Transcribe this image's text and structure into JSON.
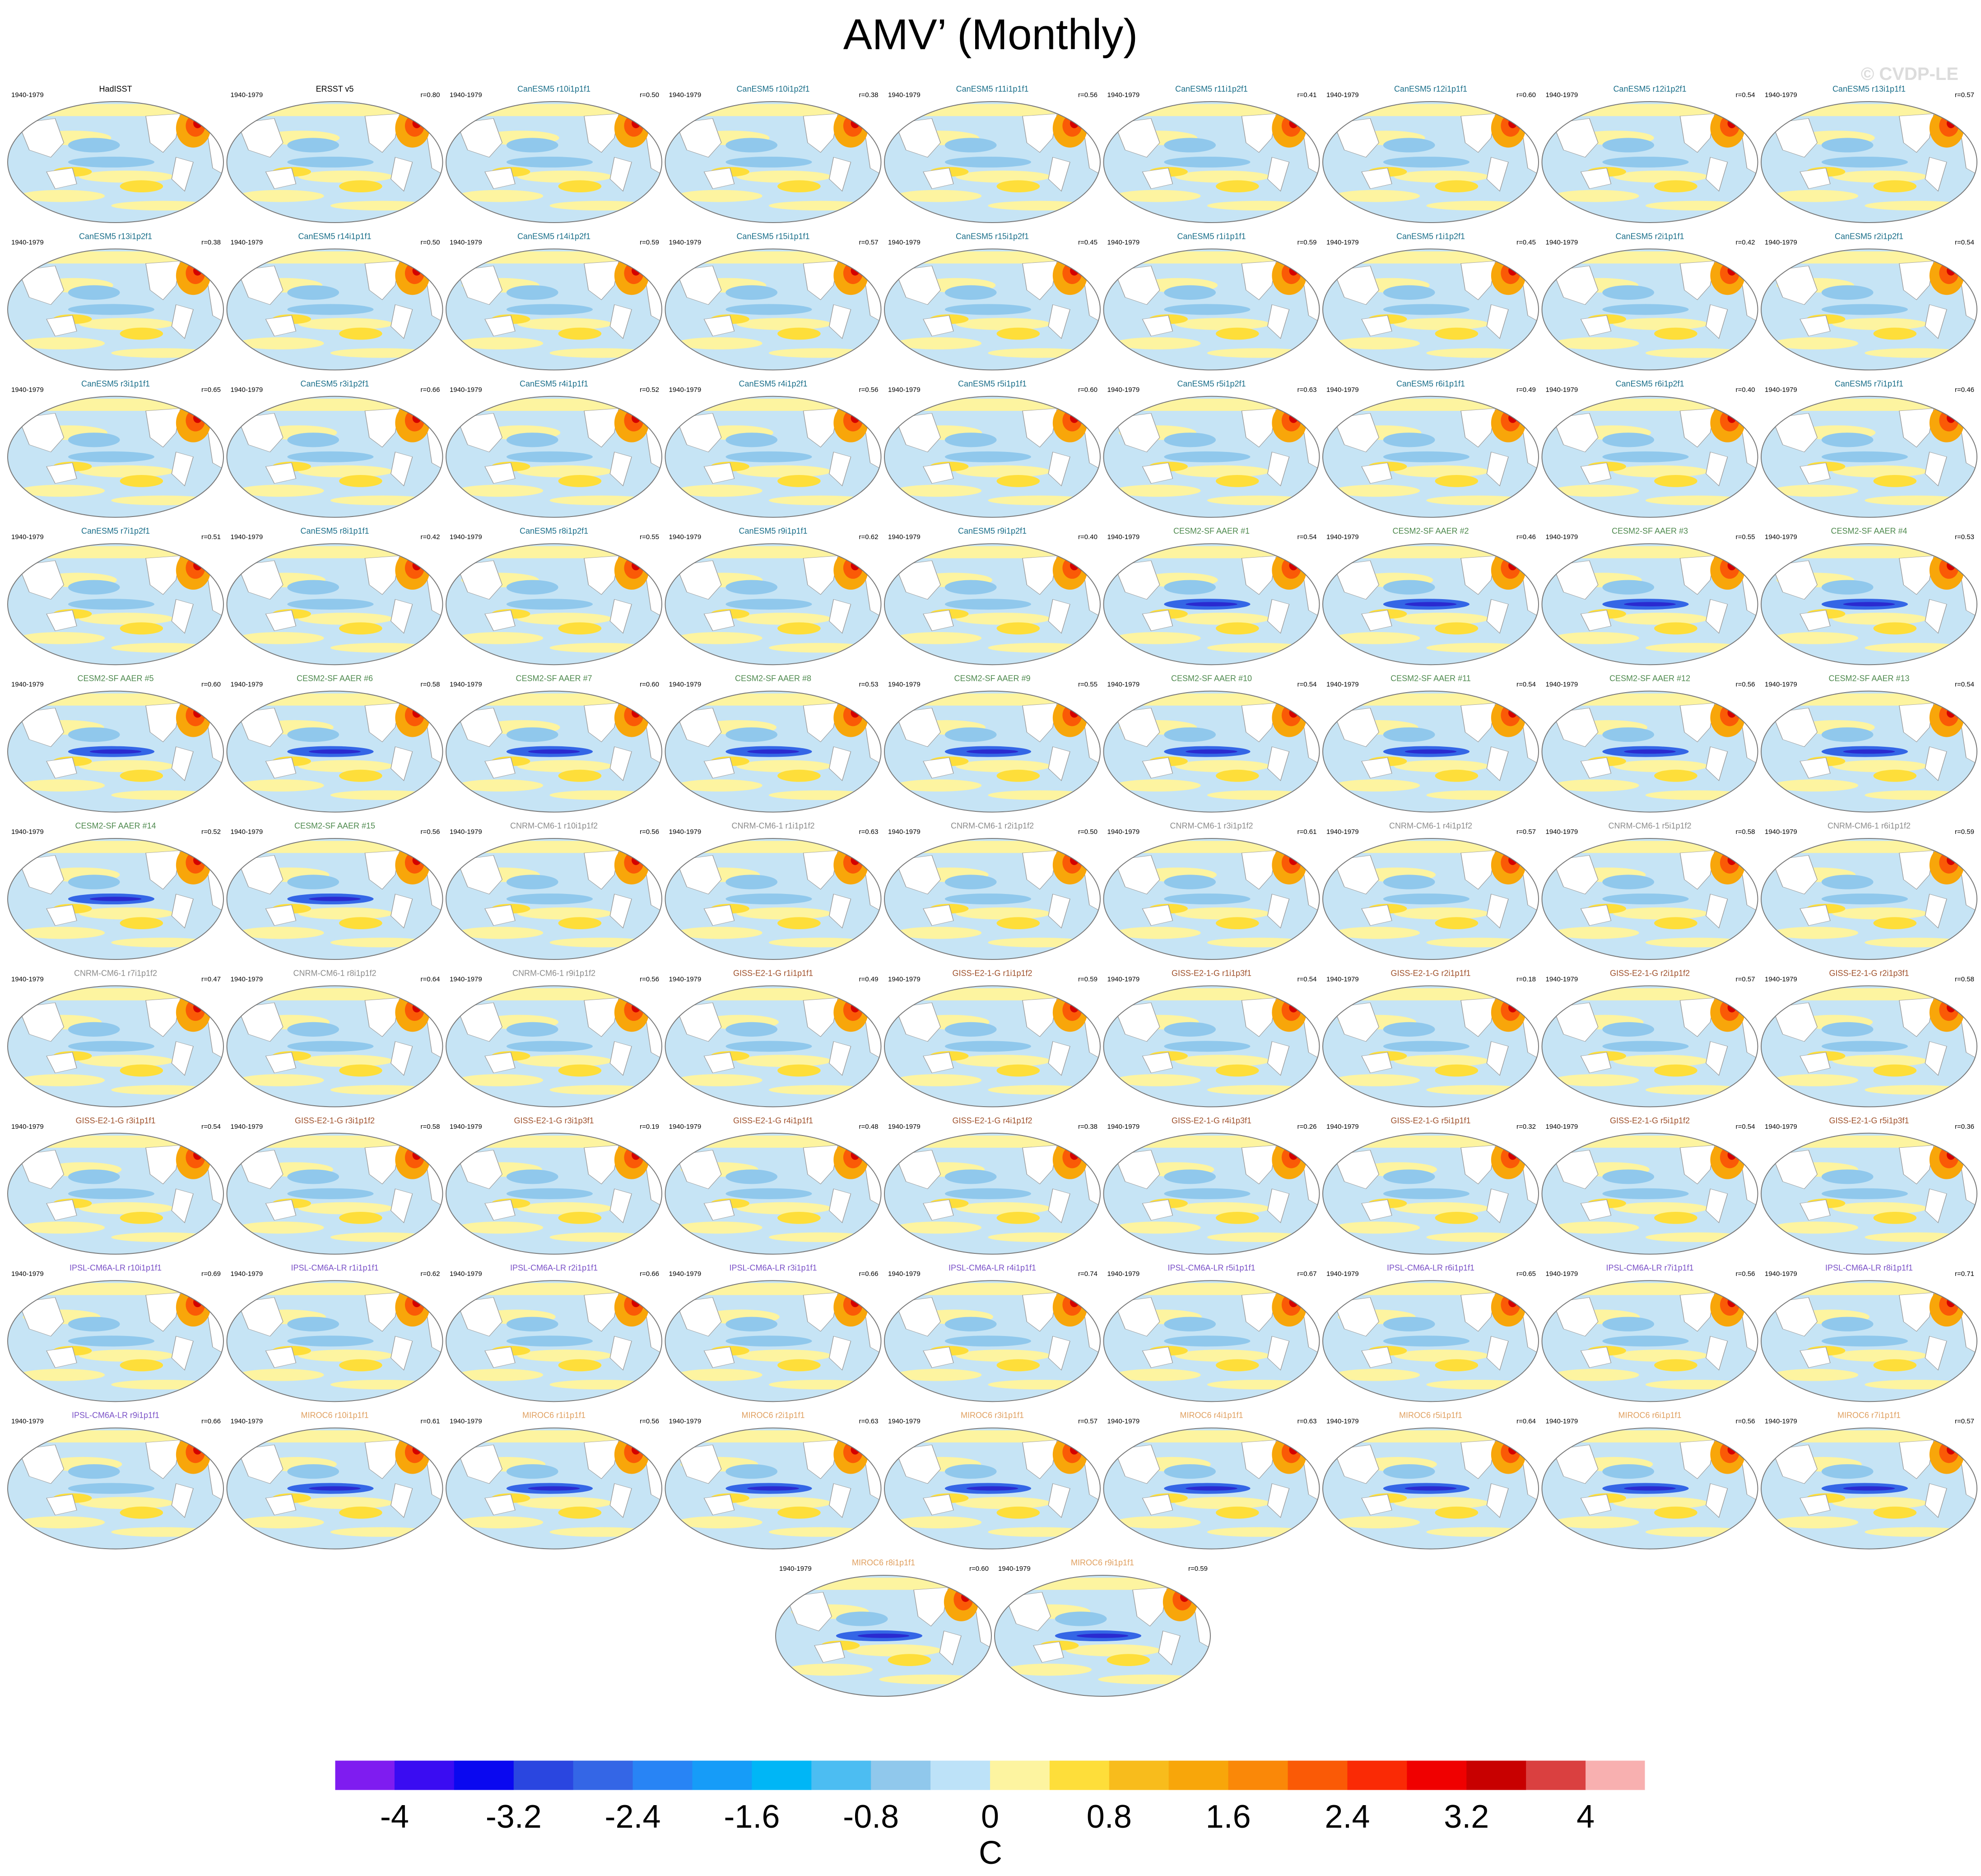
{
  "title": "AMV’ (Monthly)",
  "watermark": "© CVDP-LE",
  "group_colors": {
    "obs": "#000000",
    "CanESM5": "#1b6f8a",
    "CESM2-SF AAER": "#4f8a4f",
    "CNRM-CM6-1": "#8c8c8c",
    "GISS-E2-1-G": "#a0522d",
    "IPSL-CM6A-LR": "#7b52c7",
    "MIROC6": "#e0a060"
  },
  "chart_data": {
    "type": "heatmap",
    "description_type": "global map panels",
    "period": "1940-1979",
    "panels": [
      {
        "name": "HadISST",
        "group": "obs",
        "r": ""
      },
      {
        "name": "ERSST v5",
        "group": "obs",
        "r": "r=0.80"
      },
      {
        "name": "CanESM5 r10i1p1f1",
        "group": "CanESM5",
        "r": "r=0.50"
      },
      {
        "name": "CanESM5 r10i1p2f1",
        "group": "CanESM5",
        "r": "r=0.38"
      },
      {
        "name": "CanESM5 r11i1p1f1",
        "group": "CanESM5",
        "r": "r=0.56"
      },
      {
        "name": "CanESM5 r11i1p2f1",
        "group": "CanESM5",
        "r": "r=0.41"
      },
      {
        "name": "CanESM5 r12i1p1f1",
        "group": "CanESM5",
        "r": "r=0.60"
      },
      {
        "name": "CanESM5 r12i1p2f1",
        "group": "CanESM5",
        "r": "r=0.54"
      },
      {
        "name": "CanESM5 r13i1p1f1",
        "group": "CanESM5",
        "r": "r=0.57"
      },
      {
        "name": "CanESM5 r13i1p2f1",
        "group": "CanESM5",
        "r": "r=0.38"
      },
      {
        "name": "CanESM5 r14i1p1f1",
        "group": "CanESM5",
        "r": "r=0.50"
      },
      {
        "name": "CanESM5 r14i1p2f1",
        "group": "CanESM5",
        "r": "r=0.59"
      },
      {
        "name": "CanESM5 r15i1p1f1",
        "group": "CanESM5",
        "r": "r=0.57"
      },
      {
        "name": "CanESM5 r15i1p2f1",
        "group": "CanESM5",
        "r": "r=0.45"
      },
      {
        "name": "CanESM5 r1i1p1f1",
        "group": "CanESM5",
        "r": "r=0.59"
      },
      {
        "name": "CanESM5 r1i1p2f1",
        "group": "CanESM5",
        "r": "r=0.45"
      },
      {
        "name": "CanESM5 r2i1p1f1",
        "group": "CanESM5",
        "r": "r=0.42"
      },
      {
        "name": "CanESM5 r2i1p2f1",
        "group": "CanESM5",
        "r": "r=0.54"
      },
      {
        "name": "CanESM5 r3i1p1f1",
        "group": "CanESM5",
        "r": "r=0.65"
      },
      {
        "name": "CanESM5 r3i1p2f1",
        "group": "CanESM5",
        "r": "r=0.66"
      },
      {
        "name": "CanESM5 r4i1p1f1",
        "group": "CanESM5",
        "r": "r=0.52"
      },
      {
        "name": "CanESM5 r4i1p2f1",
        "group": "CanESM5",
        "r": "r=0.56"
      },
      {
        "name": "CanESM5 r5i1p1f1",
        "group": "CanESM5",
        "r": "r=0.60"
      },
      {
        "name": "CanESM5 r5i1p2f1",
        "group": "CanESM5",
        "r": "r=0.63"
      },
      {
        "name": "CanESM5 r6i1p1f1",
        "group": "CanESM5",
        "r": "r=0.49"
      },
      {
        "name": "CanESM5 r6i1p2f1",
        "group": "CanESM5",
        "r": "r=0.40"
      },
      {
        "name": "CanESM5 r7i1p1f1",
        "group": "CanESM5",
        "r": "r=0.46"
      },
      {
        "name": "CanESM5 r7i1p2f1",
        "group": "CanESM5",
        "r": "r=0.51"
      },
      {
        "name": "CanESM5 r8i1p1f1",
        "group": "CanESM5",
        "r": "r=0.42"
      },
      {
        "name": "CanESM5 r8i1p2f1",
        "group": "CanESM5",
        "r": "r=0.55"
      },
      {
        "name": "CanESM5 r9i1p1f1",
        "group": "CanESM5",
        "r": "r=0.62"
      },
      {
        "name": "CanESM5 r9i1p2f1",
        "group": "CanESM5",
        "r": "r=0.40"
      },
      {
        "name": "CESM2-SF AAER #1",
        "group": "CESM2-SF AAER",
        "r": "r=0.54"
      },
      {
        "name": "CESM2-SF AAER #2",
        "group": "CESM2-SF AAER",
        "r": "r=0.46"
      },
      {
        "name": "CESM2-SF AAER #3",
        "group": "CESM2-SF AAER",
        "r": "r=0.55"
      },
      {
        "name": "CESM2-SF AAER #4",
        "group": "CESM2-SF AAER",
        "r": "r=0.53"
      },
      {
        "name": "CESM2-SF AAER #5",
        "group": "CESM2-SF AAER",
        "r": "r=0.60"
      },
      {
        "name": "CESM2-SF AAER #6",
        "group": "CESM2-SF AAER",
        "r": "r=0.58"
      },
      {
        "name": "CESM2-SF AAER #7",
        "group": "CESM2-SF AAER",
        "r": "r=0.60"
      },
      {
        "name": "CESM2-SF AAER #8",
        "group": "CESM2-SF AAER",
        "r": "r=0.53"
      },
      {
        "name": "CESM2-SF AAER #9",
        "group": "CESM2-SF AAER",
        "r": "r=0.55"
      },
      {
        "name": "CESM2-SF AAER #10",
        "group": "CESM2-SF AAER",
        "r": "r=0.54"
      },
      {
        "name": "CESM2-SF AAER #11",
        "group": "CESM2-SF AAER",
        "r": "r=0.54"
      },
      {
        "name": "CESM2-SF AAER #12",
        "group": "CESM2-SF AAER",
        "r": "r=0.56"
      },
      {
        "name": "CESM2-SF AAER #13",
        "group": "CESM2-SF AAER",
        "r": "r=0.54"
      },
      {
        "name": "CESM2-SF AAER #14",
        "group": "CESM2-SF AAER",
        "r": "r=0.52"
      },
      {
        "name": "CESM2-SF AAER #15",
        "group": "CESM2-SF AAER",
        "r": "r=0.56"
      },
      {
        "name": "CNRM-CM6-1 r10i1p1f2",
        "group": "CNRM-CM6-1",
        "r": "r=0.56"
      },
      {
        "name": "CNRM-CM6-1 r1i1p1f2",
        "group": "CNRM-CM6-1",
        "r": "r=0.63"
      },
      {
        "name": "CNRM-CM6-1 r2i1p1f2",
        "group": "CNRM-CM6-1",
        "r": "r=0.50"
      },
      {
        "name": "CNRM-CM6-1 r3i1p1f2",
        "group": "CNRM-CM6-1",
        "r": "r=0.61"
      },
      {
        "name": "CNRM-CM6-1 r4i1p1f2",
        "group": "CNRM-CM6-1",
        "r": "r=0.57"
      },
      {
        "name": "CNRM-CM6-1 r5i1p1f2",
        "group": "CNRM-CM6-1",
        "r": "r=0.58"
      },
      {
        "name": "CNRM-CM6-1 r6i1p1f2",
        "group": "CNRM-CM6-1",
        "r": "r=0.59"
      },
      {
        "name": "CNRM-CM6-1 r7i1p1f2",
        "group": "CNRM-CM6-1",
        "r": "r=0.47"
      },
      {
        "name": "CNRM-CM6-1 r8i1p1f2",
        "group": "CNRM-CM6-1",
        "r": "r=0.64"
      },
      {
        "name": "CNRM-CM6-1 r9i1p1f2",
        "group": "CNRM-CM6-1",
        "r": "r=0.56"
      },
      {
        "name": "GISS-E2-1-G r1i1p1f1",
        "group": "GISS-E2-1-G",
        "r": "r=0.49"
      },
      {
        "name": "GISS-E2-1-G r1i1p1f2",
        "group": "GISS-E2-1-G",
        "r": "r=0.59"
      },
      {
        "name": "GISS-E2-1-G r1i1p3f1",
        "group": "GISS-E2-1-G",
        "r": "r=0.54"
      },
      {
        "name": "GISS-E2-1-G r2i1p1f1",
        "group": "GISS-E2-1-G",
        "r": "r=0.18"
      },
      {
        "name": "GISS-E2-1-G r2i1p1f2",
        "group": "GISS-E2-1-G",
        "r": "r=0.57"
      },
      {
        "name": "GISS-E2-1-G r2i1p3f1",
        "group": "GISS-E2-1-G",
        "r": "r=0.58"
      },
      {
        "name": "GISS-E2-1-G r3i1p1f1",
        "group": "GISS-E2-1-G",
        "r": "r=0.54"
      },
      {
        "name": "GISS-E2-1-G r3i1p1f2",
        "group": "GISS-E2-1-G",
        "r": "r=0.58"
      },
      {
        "name": "GISS-E2-1-G r3i1p3f1",
        "group": "GISS-E2-1-G",
        "r": "r=0.19"
      },
      {
        "name": "GISS-E2-1-G r4i1p1f1",
        "group": "GISS-E2-1-G",
        "r": "r=0.48"
      },
      {
        "name": "GISS-E2-1-G r4i1p1f2",
        "group": "GISS-E2-1-G",
        "r": "r=0.38"
      },
      {
        "name": "GISS-E2-1-G r4i1p3f1",
        "group": "GISS-E2-1-G",
        "r": "r=0.26"
      },
      {
        "name": "GISS-E2-1-G r5i1p1f1",
        "group": "GISS-E2-1-G",
        "r": "r=0.32"
      },
      {
        "name": "GISS-E2-1-G r5i1p1f2",
        "group": "GISS-E2-1-G",
        "r": "r=0.54"
      },
      {
        "name": "GISS-E2-1-G r5i1p3f1",
        "group": "GISS-E2-1-G",
        "r": "r=0.36"
      },
      {
        "name": "IPSL-CM6A-LR r10i1p1f1",
        "group": "IPSL-CM6A-LR",
        "r": "r=0.69"
      },
      {
        "name": "IPSL-CM6A-LR r1i1p1f1",
        "group": "IPSL-CM6A-LR",
        "r": "r=0.62"
      },
      {
        "name": "IPSL-CM6A-LR r2i1p1f1",
        "group": "IPSL-CM6A-LR",
        "r": "r=0.66"
      },
      {
        "name": "IPSL-CM6A-LR r3i1p1f1",
        "group": "IPSL-CM6A-LR",
        "r": "r=0.66"
      },
      {
        "name": "IPSL-CM6A-LR r4i1p1f1",
        "group": "IPSL-CM6A-LR",
        "r": "r=0.74"
      },
      {
        "name": "IPSL-CM6A-LR r5i1p1f1",
        "group": "IPSL-CM6A-LR",
        "r": "r=0.67"
      },
      {
        "name": "IPSL-CM6A-LR r6i1p1f1",
        "group": "IPSL-CM6A-LR",
        "r": "r=0.65"
      },
      {
        "name": "IPSL-CM6A-LR r7i1p1f1",
        "group": "IPSL-CM6A-LR",
        "r": "r=0.56"
      },
      {
        "name": "IPSL-CM6A-LR r8i1p1f1",
        "group": "IPSL-CM6A-LR",
        "r": "r=0.71"
      },
      {
        "name": "IPSL-CM6A-LR r9i1p1f1",
        "group": "IPSL-CM6A-LR",
        "r": "r=0.66"
      },
      {
        "name": "MIROC6 r10i1p1f1",
        "group": "MIROC6",
        "r": "r=0.61"
      },
      {
        "name": "MIROC6 r1i1p1f1",
        "group": "MIROC6",
        "r": "r=0.56"
      },
      {
        "name": "MIROC6 r2i1p1f1",
        "group": "MIROC6",
        "r": "r=0.63"
      },
      {
        "name": "MIROC6 r3i1p1f1",
        "group": "MIROC6",
        "r": "r=0.57"
      },
      {
        "name": "MIROC6 r4i1p1f1",
        "group": "MIROC6",
        "r": "r=0.63"
      },
      {
        "name": "MIROC6 r5i1p1f1",
        "group": "MIROC6",
        "r": "r=0.64"
      },
      {
        "name": "MIROC6 r6i1p1f1",
        "group": "MIROC6",
        "r": "r=0.56"
      },
      {
        "name": "MIROC6 r7i1p1f1",
        "group": "MIROC6",
        "r": "r=0.57"
      },
      {
        "name": "MIROC6 r8i1p1f1",
        "group": "MIROC6",
        "r": "r=0.60"
      },
      {
        "name": "MIROC6 r9i1p1f1",
        "group": "MIROC6",
        "r": "r=0.59"
      }
    ],
    "colorbar": {
      "unit": "C",
      "levels": [
        -4,
        -3.6,
        -3.2,
        -2.8,
        -2.4,
        -2,
        -1.6,
        -1.2,
        -0.8,
        -0.4,
        0,
        0.4,
        0.8,
        1.2,
        1.6,
        2,
        2.4,
        2.8,
        3.2,
        3.6,
        4
      ],
      "tick_labels": [
        "-4",
        "-3.2",
        "-2.4",
        "-1.6",
        "-0.8",
        "0",
        "0.8",
        "1.6",
        "2.4",
        "3.2",
        "4"
      ],
      "colors": [
        "#7f1cf0",
        "#3a0cf2",
        "#0a08f0",
        "#2a46e0",
        "#3466e6",
        "#2884f5",
        "#169cf8",
        "#00b6f6",
        "#4cbdf2",
        "#90c8ec",
        "#bde2f8",
        "#fdf4a0",
        "#fede3a",
        "#f8bc1c",
        "#f8a60a",
        "#fa8808",
        "#fa5a06",
        "#fa2a05",
        "#f00000",
        "#c80000",
        "#da4040",
        "#f8b0b0"
      ]
    }
  }
}
